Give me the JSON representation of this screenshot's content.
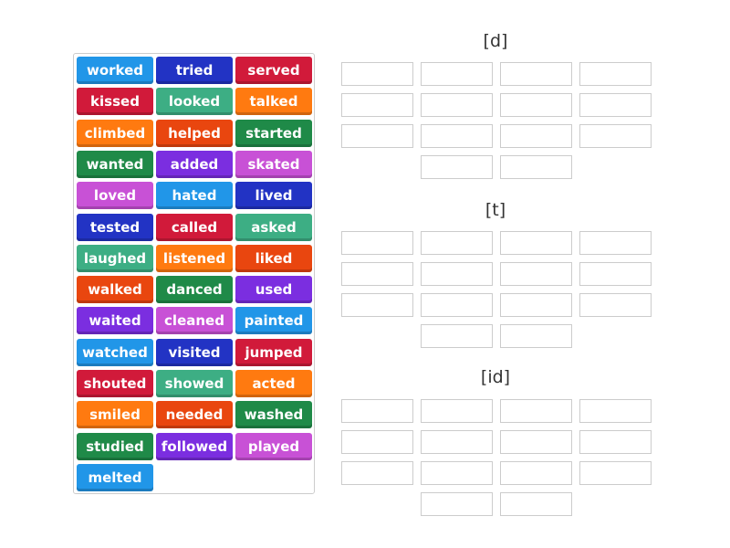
{
  "colors": {
    "sky": "#2196e8",
    "navy": "#2233c4",
    "red": "#d11a3a",
    "teal": "#3dae84",
    "orange": "#ff7a10",
    "redorange": "#e9460f",
    "green": "#1f8a48",
    "purple": "#7b2ee0",
    "magenta": "#c851d6"
  },
  "tiles": [
    {
      "word": "worked",
      "color": "sky"
    },
    {
      "word": "tried",
      "color": "navy"
    },
    {
      "word": "served",
      "color": "red"
    },
    {
      "word": "kissed",
      "color": "red"
    },
    {
      "word": "looked",
      "color": "teal"
    },
    {
      "word": "talked",
      "color": "orange"
    },
    {
      "word": "climbed",
      "color": "orange"
    },
    {
      "word": "helped",
      "color": "redorange"
    },
    {
      "word": "started",
      "color": "green"
    },
    {
      "word": "wanted",
      "color": "green"
    },
    {
      "word": "added",
      "color": "purple"
    },
    {
      "word": "skated",
      "color": "magenta"
    },
    {
      "word": "loved",
      "color": "magenta"
    },
    {
      "word": "hated",
      "color": "sky"
    },
    {
      "word": "lived",
      "color": "navy"
    },
    {
      "word": "tested",
      "color": "navy"
    },
    {
      "word": "called",
      "color": "red"
    },
    {
      "word": "asked",
      "color": "teal"
    },
    {
      "word": "laughed",
      "color": "teal"
    },
    {
      "word": "listened",
      "color": "orange"
    },
    {
      "word": "liked",
      "color": "redorange"
    },
    {
      "word": "walked",
      "color": "redorange"
    },
    {
      "word": "danced",
      "color": "green"
    },
    {
      "word": "used",
      "color": "purple"
    },
    {
      "word": "waited",
      "color": "purple"
    },
    {
      "word": "cleaned",
      "color": "magenta"
    },
    {
      "word": "painted",
      "color": "sky"
    },
    {
      "word": "watched",
      "color": "sky"
    },
    {
      "word": "visited",
      "color": "navy"
    },
    {
      "word": "jumped",
      "color": "red"
    },
    {
      "word": "shouted",
      "color": "red"
    },
    {
      "word": "showed",
      "color": "teal"
    },
    {
      "word": "acted",
      "color": "orange"
    },
    {
      "word": "smiled",
      "color": "orange"
    },
    {
      "word": "needed",
      "color": "redorange"
    },
    {
      "word": "washed",
      "color": "green"
    },
    {
      "word": "studied",
      "color": "green"
    },
    {
      "word": "followed",
      "color": "purple"
    },
    {
      "word": "played",
      "color": "magenta"
    },
    {
      "word": "melted",
      "color": "sky"
    }
  ],
  "groups": [
    {
      "label": "[d]"
    },
    {
      "label": "[t]"
    },
    {
      "label": "[id]"
    }
  ]
}
